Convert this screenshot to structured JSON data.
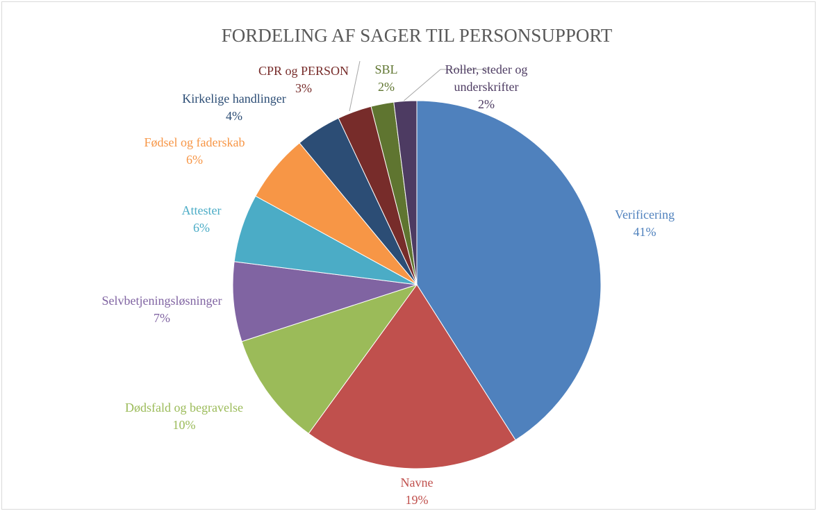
{
  "chart_data": {
    "type": "pie",
    "title": "FORDELING AF SAGER TIL PERSONSUPPORT",
    "categories": [
      "Verificering",
      "Navne",
      "Dødsfald og begravelse",
      "Selvbetjeningsløsninger",
      "Attester",
      "Fødsel og faderskab",
      "Kirkelige handlinger",
      "CPR og PERSON",
      "SBL",
      "Roller, steder og underskrifter"
    ],
    "values": [
      41,
      19,
      10,
      7,
      6,
      6,
      4,
      3,
      2,
      2
    ],
    "value_labels": [
      "41%",
      "19%",
      "10%",
      "7%",
      "6%",
      "6%",
      "4%",
      "3%",
      "2%",
      "2%"
    ],
    "colors": [
      "#4f81bd",
      "#c0504d",
      "#9bbb59",
      "#8064a2",
      "#4bacc6",
      "#f79646",
      "#2c4d75",
      "#772c2a",
      "#5f7530",
      "#4d3b62"
    ]
  }
}
